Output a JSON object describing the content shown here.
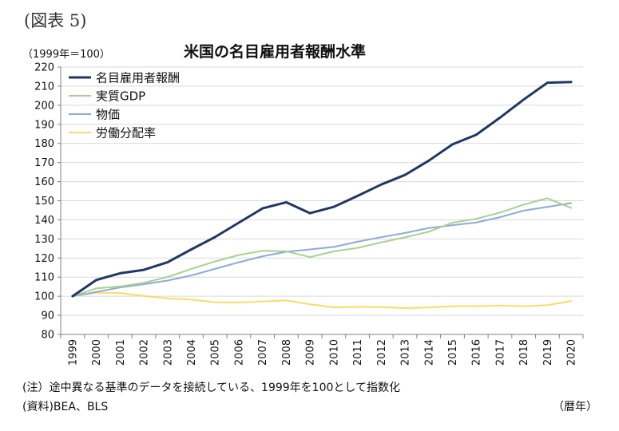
{
  "figure_label": "(図表 5)",
  "unit_label": "（1999年＝100）",
  "note": "(注）途中異なる基準のデータを接続している、1999年を100として指数化",
  "source": "(資料)BEA、BLS",
  "x_unit": "（暦年）",
  "chart_data": {
    "type": "line",
    "title": "米国の名目雇用者報酬水準",
    "ylabel": "（1999年＝100）",
    "xlabel": "（暦年）",
    "ylim": [
      80,
      220
    ],
    "ytick_step": 10,
    "grid": true,
    "legend_position": "top-left",
    "categories": [
      "1999",
      "2000",
      "2001",
      "2002",
      "2003",
      "2004",
      "2005",
      "2006",
      "2007",
      "2008",
      "2009",
      "2010",
      "2011",
      "2012",
      "2013",
      "2014",
      "2015",
      "2016",
      "2017",
      "2018",
      "2019",
      "2020"
    ],
    "series": [
      {
        "name": "名目雇用者報酬",
        "color": "#1f3864",
        "values": [
          100,
          108.5,
          112,
          113.8,
          117.8,
          124.5,
          131,
          138.5,
          146,
          149.2,
          143.5,
          146.8,
          152.5,
          158.5,
          163.5,
          171,
          179.5,
          184.5,
          193.5,
          203,
          211.8,
          212.2
        ]
      },
      {
        "name": "実質GDP",
        "color": "#a9d18e",
        "values": [
          100,
          104.1,
          105.1,
          107,
          110.1,
          114.3,
          118.2,
          121.6,
          123.8,
          123.5,
          120.5,
          123.5,
          125.3,
          128.2,
          130.8,
          133.8,
          138.5,
          140.5,
          143.8,
          148,
          151.3,
          146.2
        ]
      },
      {
        "name": "物価",
        "color": "#8eaadb",
        "values": [
          100,
          102.2,
          104.6,
          106.3,
          108.2,
          110.9,
          114.3,
          117.8,
          120.9,
          123.3,
          124.5,
          125.8,
          128.5,
          130.9,
          133.1,
          135.7,
          137.2,
          138.6,
          141.4,
          144.8,
          146.8,
          148.8
        ]
      },
      {
        "name": "労働分配率",
        "color": "#ffd966",
        "values": [
          100,
          101.8,
          101.7,
          100.1,
          98.9,
          98.2,
          96.9,
          96.7,
          97.2,
          97.8,
          95.8,
          94.2,
          94.4,
          94.3,
          93.8,
          94.1,
          94.8,
          94.8,
          95.1,
          94.8,
          95.3,
          97.5
        ]
      }
    ]
  }
}
